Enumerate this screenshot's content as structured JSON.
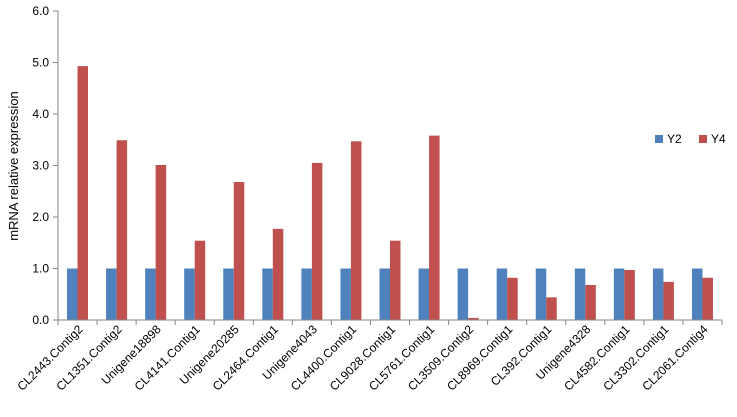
{
  "chart_data": {
    "type": "bar",
    "title": "",
    "xlabel": "",
    "ylabel": "mRNA relative expression",
    "ylim": [
      0,
      6
    ],
    "yticks": [
      "0.0",
      "1.0",
      "2.0",
      "3.0",
      "4.0",
      "5.0",
      "6.0"
    ],
    "grid": false,
    "legend_position": "right",
    "categories": [
      "CL2443.Contig2",
      "CL1351.Contig2",
      "Unigene18898",
      "CL4141.Contig1",
      "Unigene20285",
      "CL2464.Contig1",
      "Unigene4043",
      "CL4400.Contig1",
      "CL9028.Contig1",
      "CL5761.Contig1",
      "CL3509.Contig2",
      "CL8969.Contig1",
      "CL392.Contig1",
      "Unigene4328",
      "CL4582.Contig1",
      "CL3302.Contig1",
      "CL2061.Contig4"
    ],
    "series": [
      {
        "name": "Y2",
        "color": "#4F81BD",
        "values": [
          1.0,
          1.0,
          1.0,
          1.0,
          1.0,
          1.0,
          1.0,
          1.0,
          1.0,
          1.0,
          1.0,
          1.0,
          1.0,
          1.0,
          1.0,
          1.0,
          1.0
        ]
      },
      {
        "name": "Y4",
        "color": "#C0504D",
        "values": [
          4.93,
          3.49,
          3.01,
          1.54,
          2.68,
          1.77,
          3.05,
          3.47,
          1.54,
          3.58,
          0.04,
          0.82,
          0.44,
          0.68,
          0.97,
          0.74,
          0.82
        ]
      }
    ]
  }
}
